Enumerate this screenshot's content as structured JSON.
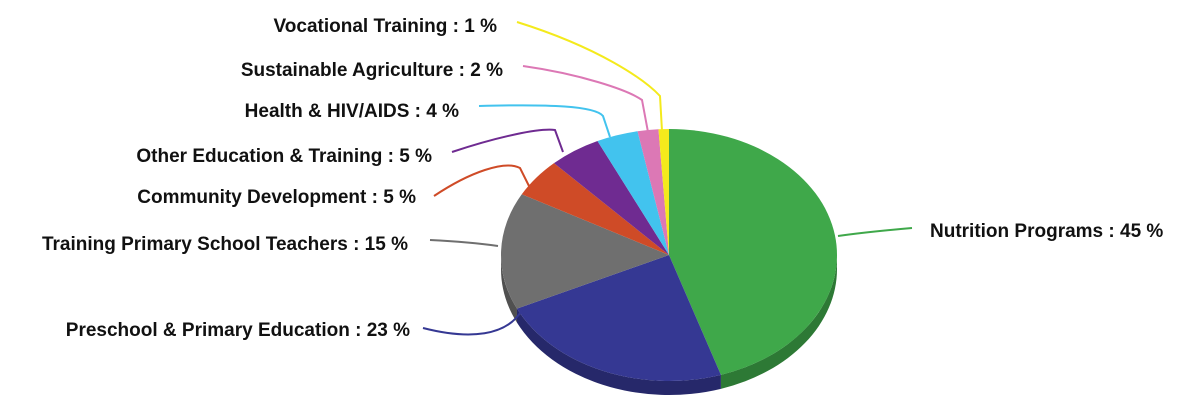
{
  "chart_data": {
    "type": "pie",
    "style": "3d-tilted",
    "unit": "%",
    "slices": [
      {
        "label": "Nutrition Programs",
        "value": 45,
        "color": "#3fa84a"
      },
      {
        "label": "Preschool & Primary Education",
        "value": 23,
        "color": "#353893"
      },
      {
        "label": "Training Primary School Teachers",
        "value": 15,
        "color": "#6f6f6f"
      },
      {
        "label": "Community Development",
        "value": 5,
        "color": "#cf4b27"
      },
      {
        "label": "Other Education & Training",
        "value": 5,
        "color": "#6f2b91"
      },
      {
        "label": "Health & HIV/AIDS",
        "value": 4,
        "color": "#42c3ee"
      },
      {
        "label": "Sustainable Agriculture",
        "value": 2,
        "color": "#dc78b5"
      },
      {
        "label": "Vocational Training",
        "value": 1,
        "color": "#f4ea1c"
      }
    ]
  }
}
